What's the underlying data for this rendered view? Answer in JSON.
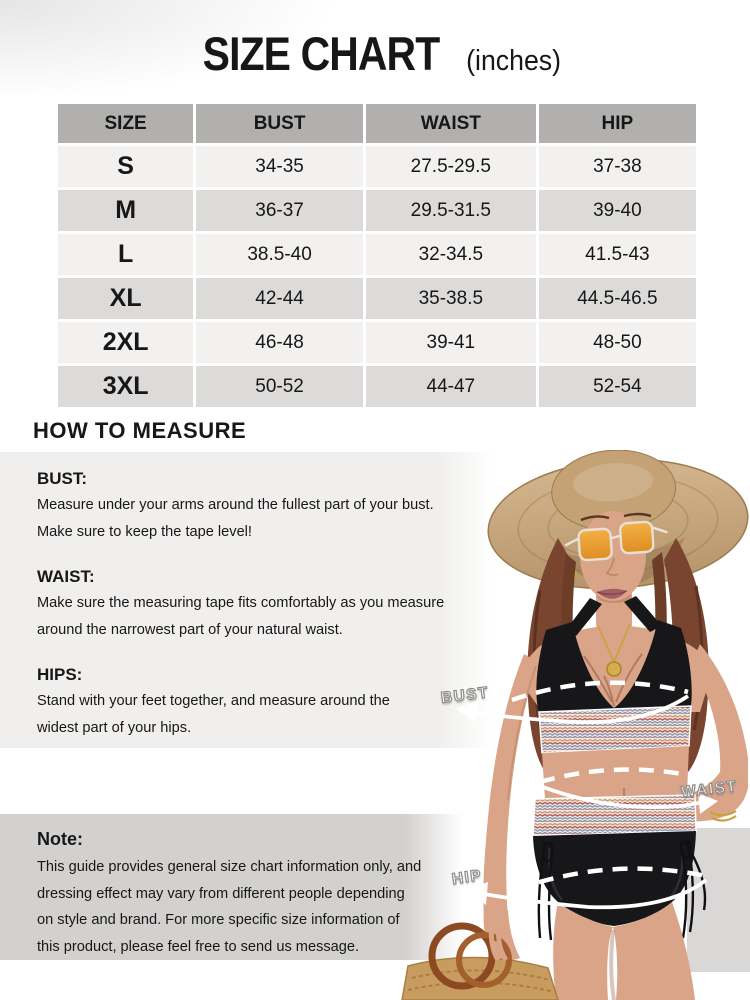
{
  "title": {
    "main": "SIZE CHART",
    "unit": "(inches)"
  },
  "size_table": {
    "columns": [
      "SIZE",
      "BUST",
      "WAIST",
      "HIP"
    ],
    "rows": [
      [
        "S",
        "34-35",
        "27.5-29.5",
        "37-38"
      ],
      [
        "M",
        "36-37",
        "29.5-31.5",
        "39-40"
      ],
      [
        "L",
        "38.5-40",
        "32-34.5",
        "41.5-43"
      ],
      [
        "XL",
        "42-44",
        "35-38.5",
        "44.5-46.5"
      ],
      [
        "2XL",
        "46-48",
        "39-41",
        "48-50"
      ],
      [
        "3XL",
        "50-52",
        "44-47",
        "52-54"
      ]
    ]
  },
  "how_to_measure": {
    "heading": "HOW TO MEASURE",
    "sections": [
      {
        "label": "BUST:",
        "lines": [
          "Measure under your arms around the fullest part of your bust.",
          "Make sure to keep the tape level!"
        ]
      },
      {
        "label": "WAIST:",
        "lines": [
          "Make sure the measuring tape fits comfortably as you measure",
          "around the narrowest part of your natural waist."
        ]
      },
      {
        "label": "HIPS:",
        "lines": [
          "Stand with your feet together, and measure around the",
          "widest part of your hips."
        ]
      }
    ]
  },
  "note": {
    "heading": "Note:",
    "lines": [
      "This guide provides general size chart information only, and",
      "dressing effect may vary from different people depending",
      "on style and brand. For more specific size information of",
      "this product, please feel free to send us message."
    ]
  },
  "figure": {
    "labels": {
      "bust": "BUST",
      "waist": "WAIST",
      "hip": "HIP"
    }
  },
  "colors": {
    "table_header_bg": "#b1b0af",
    "table_row_light": "#f2f1f0",
    "table_row_dark": "#dcdbda",
    "panel_light_bg": "#f0efed",
    "note_panel_bg": "#d3d1cf",
    "photo_corner_bg": "#d9d8d6",
    "text": "#171717",
    "measurement_ring": "#ffffff",
    "skin": "#d9a487",
    "hair": "#7a452e",
    "hat": "#c7a87e",
    "swimsuit": "#17171a",
    "gold": "#c9a23c"
  }
}
